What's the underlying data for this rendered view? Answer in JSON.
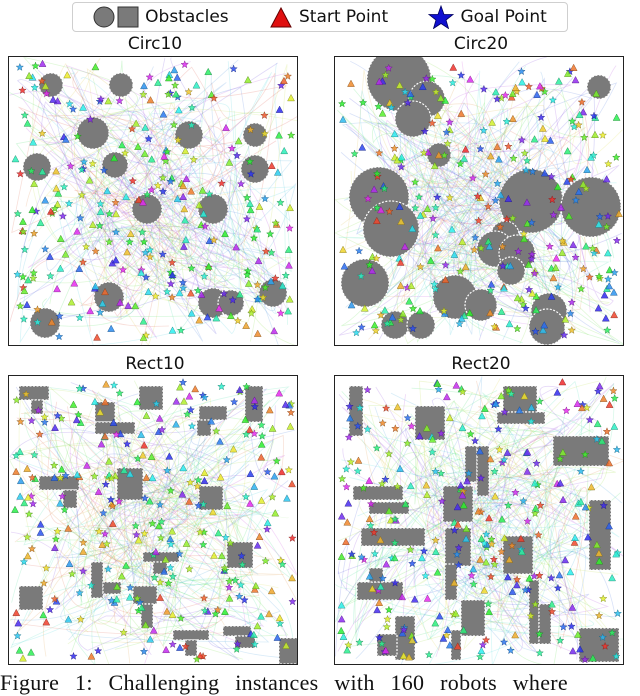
{
  "legend": {
    "obstacles_label": "Obstacles",
    "start_label": "Start Point",
    "goal_label": "Goal Point",
    "obstacle_color": "#7a7a7a",
    "start_color": "#e01010",
    "goal_color": "#1010d0"
  },
  "panels": [
    {
      "title": "Circ10"
    },
    {
      "title": "Circ20"
    },
    {
      "title": "Rect10"
    },
    {
      "title": "Rect20"
    }
  ],
  "caption": "Figure 1: Challenging instances with 160 robots where"
}
